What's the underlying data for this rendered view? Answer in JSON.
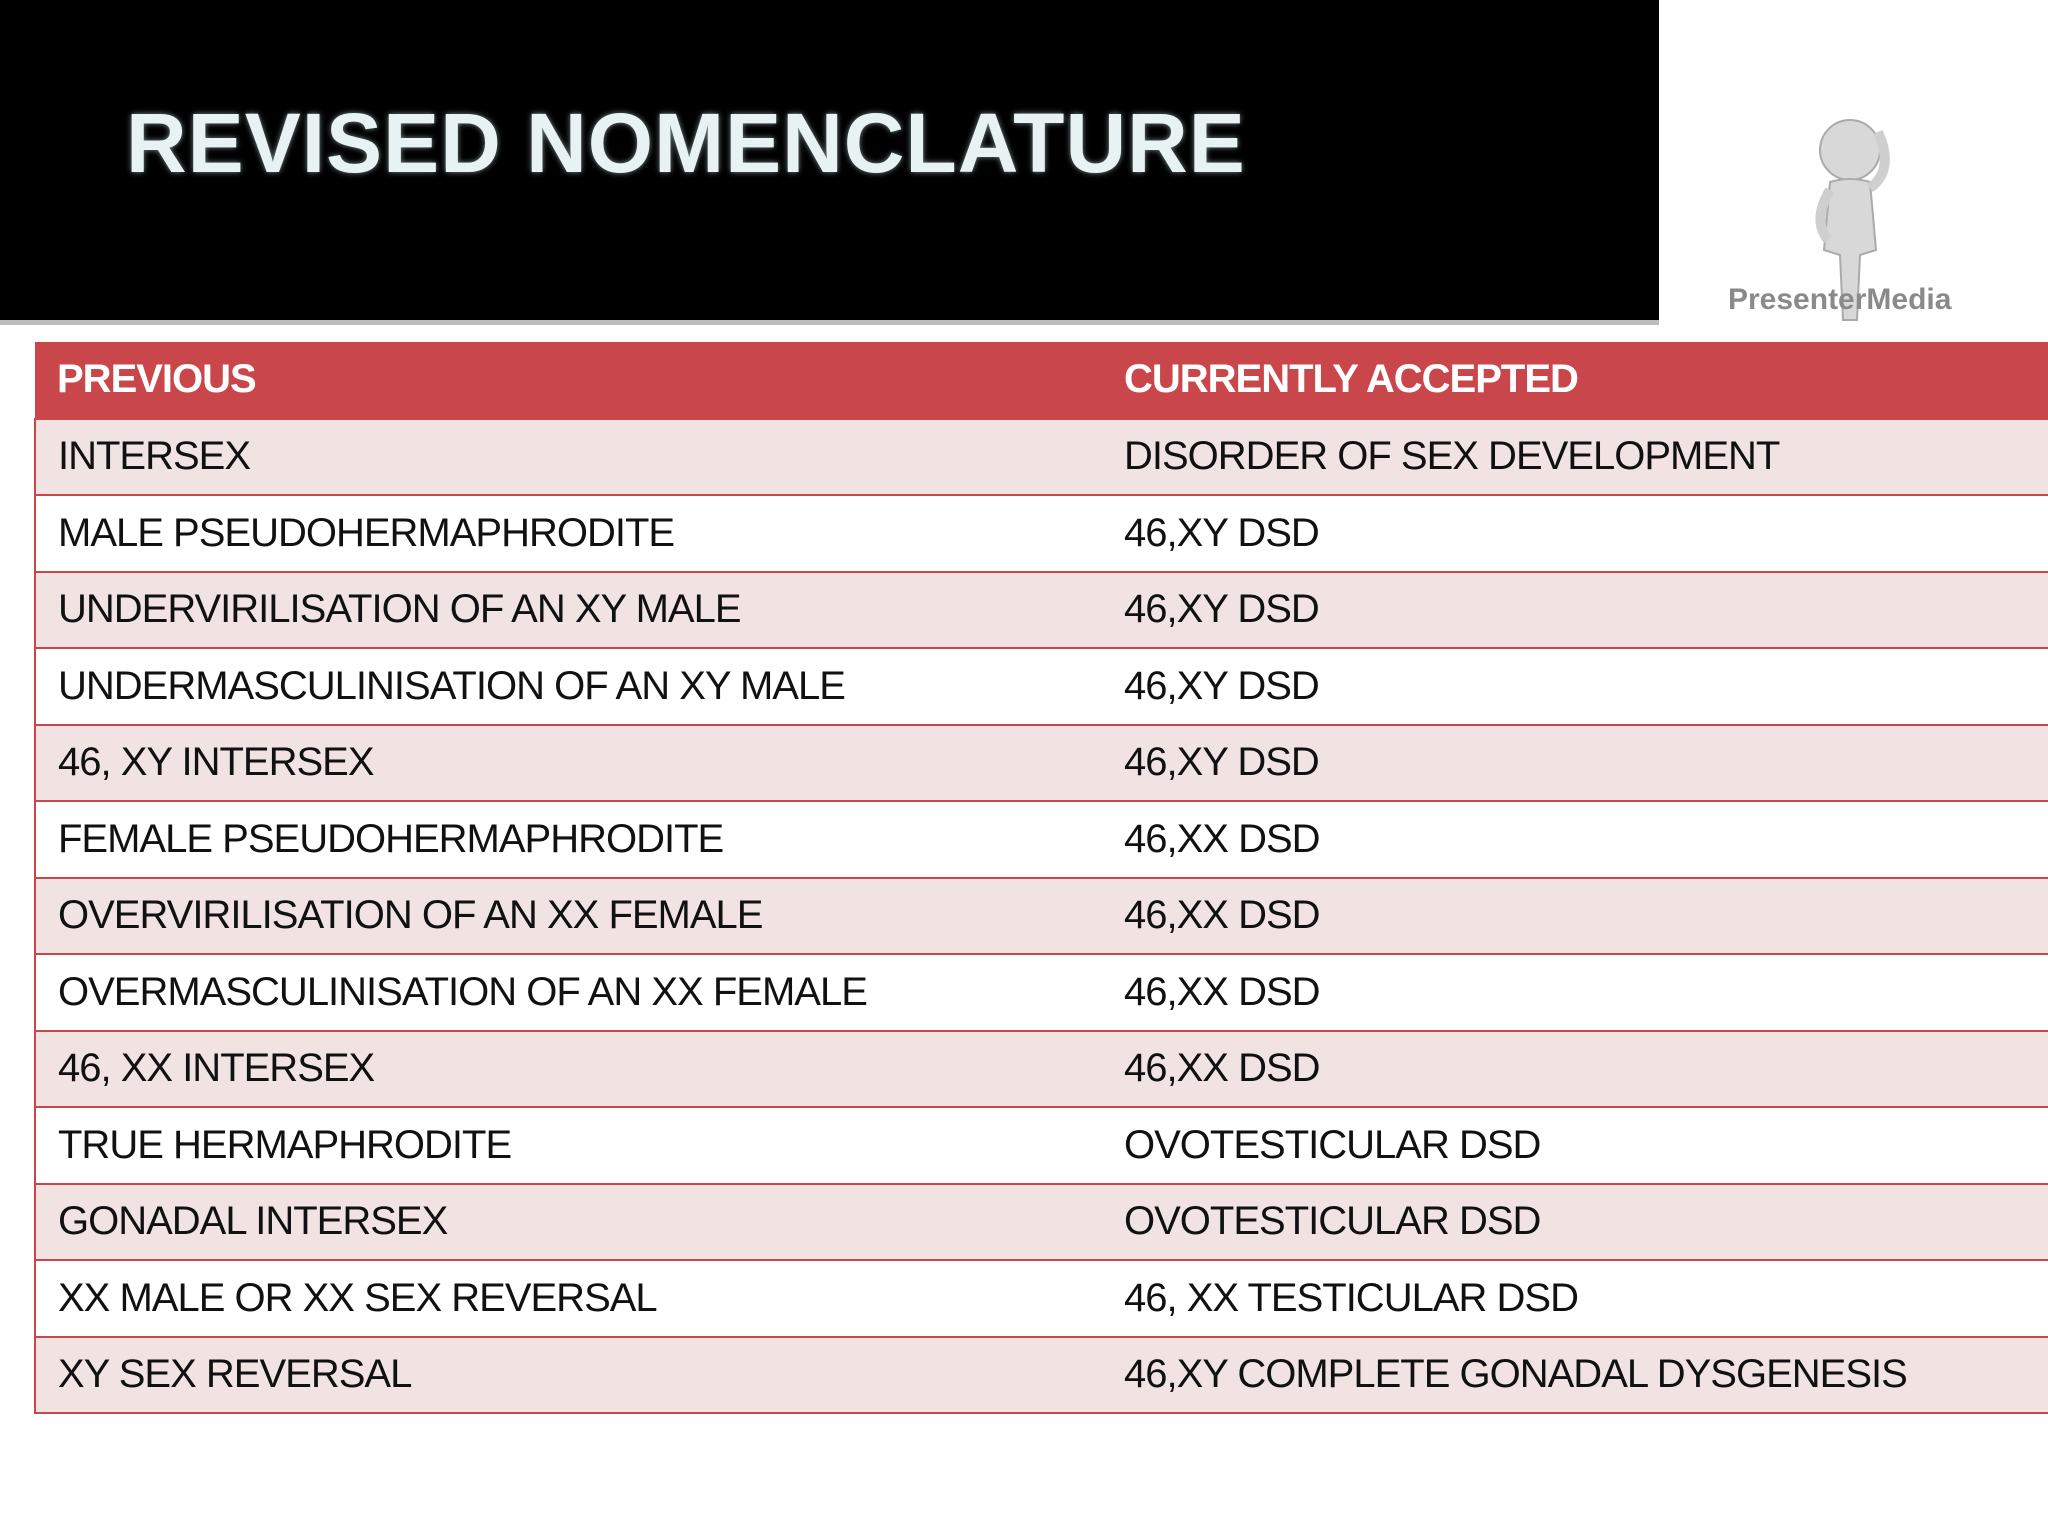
{
  "header": {
    "title": "REVISED NOMENCLATURE",
    "logo_text": "PresenterMedia"
  },
  "table": {
    "columns": [
      "PREVIOUS",
      "CURRENTLY ACCEPTED"
    ],
    "rows": [
      [
        "INTERSEX",
        "DISORDER OF SEX  DEVELOPMENT"
      ],
      [
        "MALE PSEUDOHERMAPHRODITE",
        "46,XY DSD"
      ],
      [
        "UNDERVIRILISATION  OF AN XY MALE",
        "46,XY DSD"
      ],
      [
        "UNDERMASCULINISATION OF AN XY MALE",
        "46,XY DSD"
      ],
      [
        "46, XY INTERSEX",
        "46,XY DSD"
      ],
      [
        "FEMALE PSEUDOHERMAPHRODITE",
        "46,XX DSD"
      ],
      [
        "OVERVIRILISATION OF AN XX FEMALE",
        "46,XX DSD"
      ],
      [
        "OVERMASCULINISATION OF AN XX FEMALE",
        "46,XX DSD"
      ],
      [
        "46, XX INTERSEX",
        "46,XX DSD"
      ],
      [
        "TRUE HERMAPHRODITE",
        "OVOTESTICULAR DSD"
      ],
      [
        "GONADAL INTERSEX",
        "OVOTESTICULAR DSD"
      ],
      [
        "XX MALE OR XX SEX REVERSAL",
        "46, XX TESTICULAR DSD"
      ],
      [
        "XY SEX REVERSAL",
        "46,XY COMPLETE GONADAL DYSGENESIS"
      ]
    ]
  }
}
